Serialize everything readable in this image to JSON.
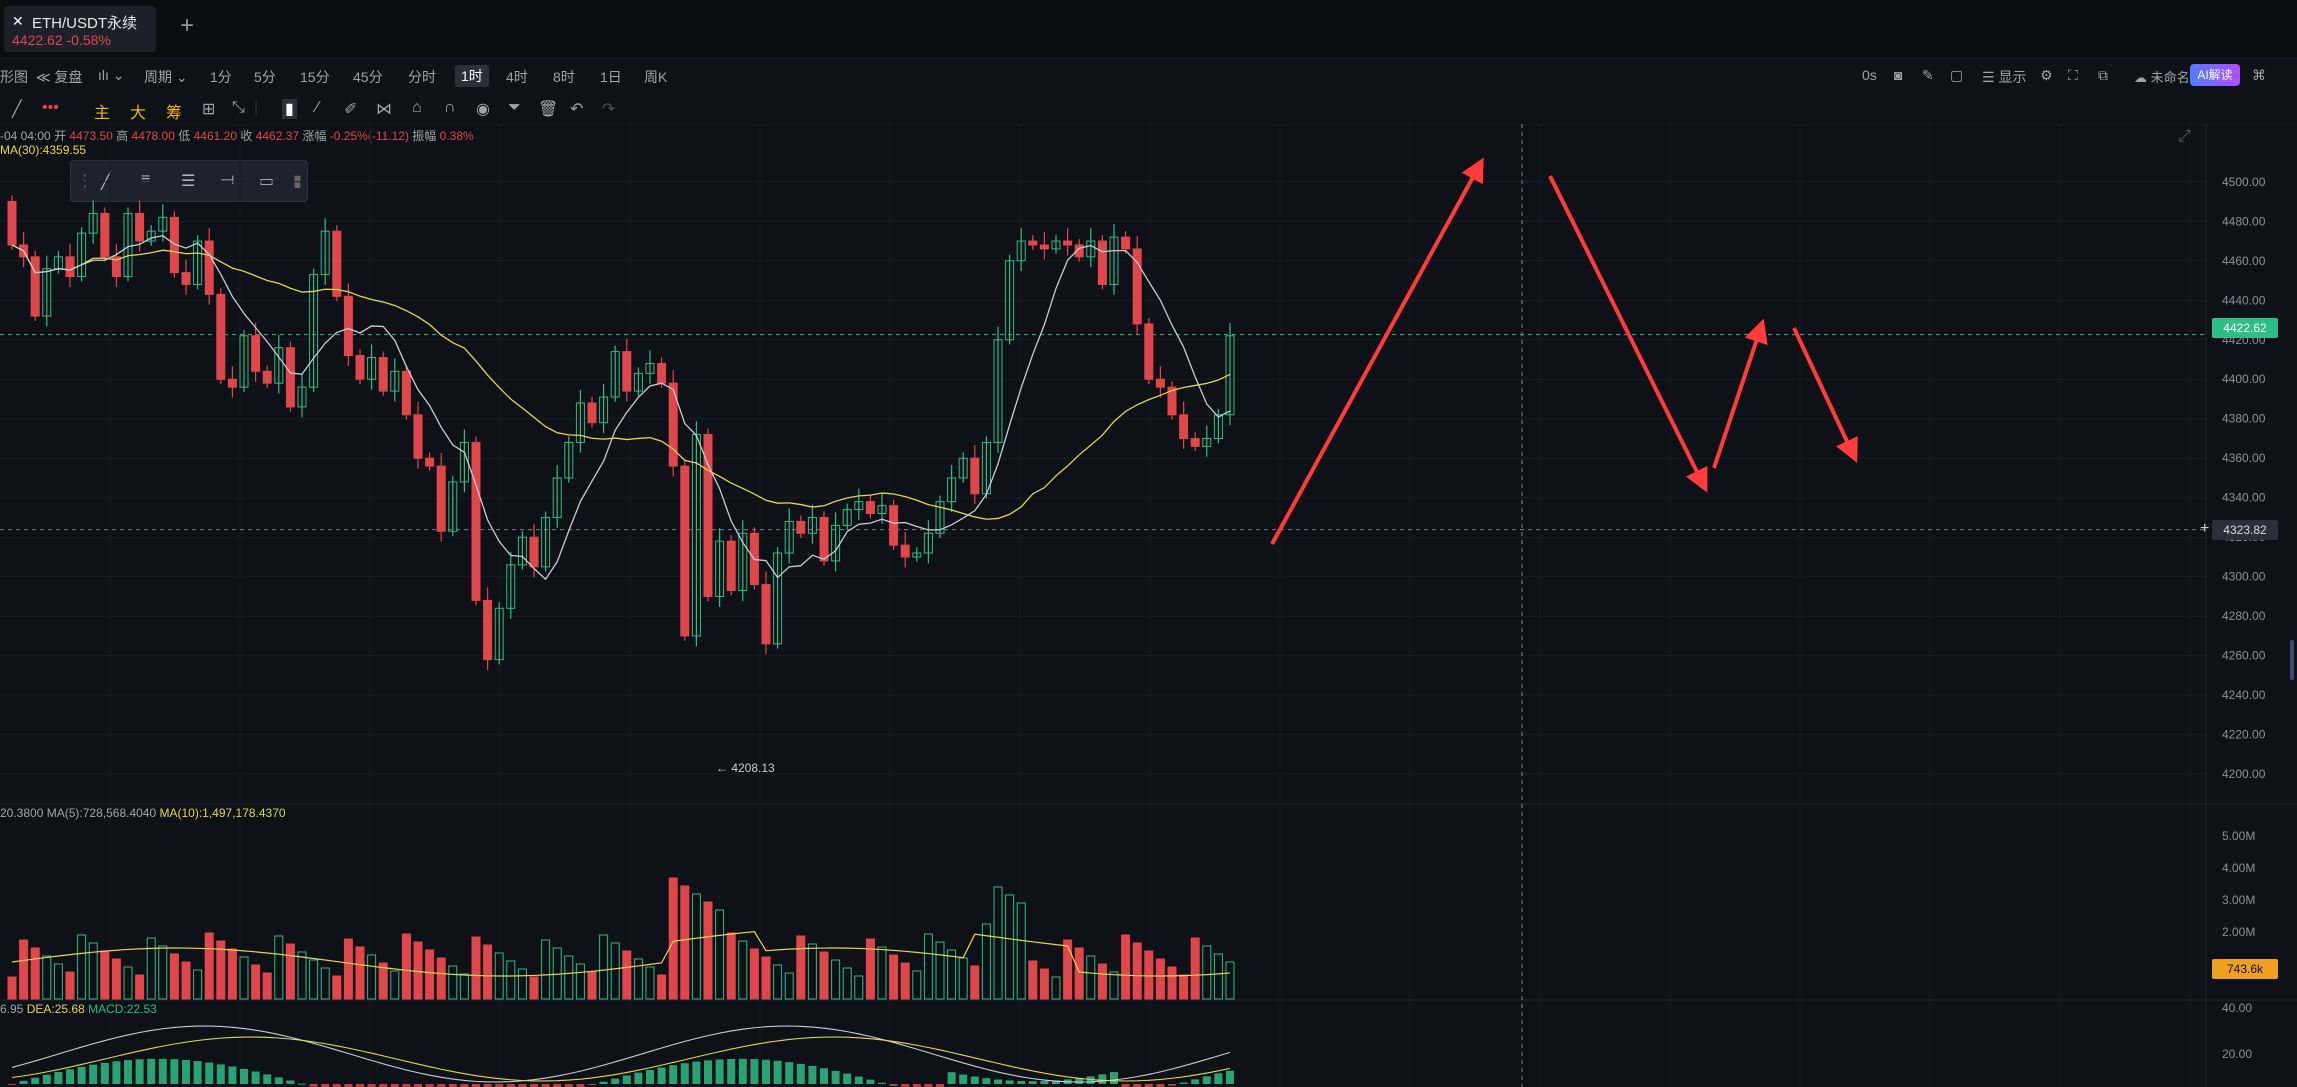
{
  "tab": {
    "title": "ETH/USDT永续",
    "price_change": "4422.62 -0.58%",
    "add": "+"
  },
  "toolbar": {
    "items": [
      "形图",
      "复盘",
      "周期",
      "1分",
      "5分",
      "15分",
      "45分",
      "分时",
      "1时",
      "4时",
      "8时",
      "1日",
      "周K"
    ],
    "active": "1时",
    "right": {
      "seconds": "0s",
      "display": "显示",
      "unnamed": "未命名",
      "ai": "AI解读"
    }
  },
  "toolbar2": {
    "indicators": [
      "主",
      "大",
      "筹"
    ]
  },
  "ohlc": {
    "time": "-04 04:00",
    "open_label": "开",
    "open": "4473.50",
    "high_label": "高",
    "high": "4478.00",
    "low_label": "低",
    "low": "4461.20",
    "close_label": "收",
    "close": "4462.37",
    "change_label": "涨幅",
    "change": "-0.25%(-11.12)",
    "amp_label": "振幅",
    "amp": "0.38%"
  },
  "ma_legend": "MA(30):4359.55",
  "volume_legend": {
    "vol": "20.3800",
    "ma5": "MA(5):728,568.4040",
    "ma10": "MA(10):1,497,178.4370"
  },
  "macd_legend": {
    "dif": "6.95",
    "dea": "DEA:25.68",
    "macd": "MACD:22.53"
  },
  "price_tags": {
    "current": "4422.62",
    "cursor": "4323.82",
    "volume": "743.6k",
    "low_marker": "← 4208.13"
  },
  "colors": {
    "up": "#2ebd85",
    "down": "#e0474b",
    "ma_yellow": "#e8d44d",
    "ma_white": "#c8ccd6",
    "arrow": "#ff3b3b",
    "current_price": "#2ebd85",
    "volume_tag": "#f0a020"
  },
  "chart_data": {
    "type": "candlestick",
    "price_axis": [
      "4500.00",
      "4480.00",
      "4460.00",
      "4440.00",
      "4420.00",
      "4400.00",
      "4380.00",
      "4360.00",
      "4340.00",
      "4320.00",
      "4300.00",
      "4280.00",
      "4260.00",
      "4240.00",
      "4220.00",
      "4200.00"
    ],
    "volume_axis": [
      "5.00M",
      "4.00M",
      "3.00M",
      "2.00M",
      "1.00M"
    ],
    "macd_axis": [
      "40.00",
      "20.00"
    ],
    "ylim": [
      4194,
      4508
    ],
    "candles": [
      [
        4490,
        4468
      ],
      [
        4468,
        4462
      ],
      [
        4462,
        4432
      ],
      [
        4432,
        4456
      ],
      [
        4456,
        4462
      ],
      [
        4462,
        4452
      ],
      [
        4452,
        4474
      ],
      [
        4474,
        4484
      ],
      [
        4484,
        4462
      ],
      [
        4462,
        4452
      ],
      [
        4452,
        4484
      ],
      [
        4484,
        4470
      ],
      [
        4470,
        4475
      ],
      [
        4475,
        4482
      ],
      [
        4482,
        4454
      ],
      [
        4454,
        4448
      ],
      [
        4448,
        4470
      ],
      [
        4470,
        4443
      ],
      [
        4443,
        4400
      ],
      [
        4400,
        4396
      ],
      [
        4396,
        4422
      ],
      [
        4422,
        4404
      ],
      [
        4404,
        4398
      ],
      [
        4398,
        4416
      ],
      [
        4416,
        4386
      ],
      [
        4386,
        4396
      ],
      [
        4396,
        4453
      ],
      [
        4453,
        4475
      ],
      [
        4475,
        4442
      ],
      [
        4442,
        4412
      ],
      [
        4412,
        4400
      ],
      [
        4400,
        4411
      ],
      [
        4411,
        4394
      ],
      [
        4394,
        4404
      ],
      [
        4404,
        4382
      ],
      [
        4382,
        4360
      ],
      [
        4360,
        4356
      ],
      [
        4356,
        4323
      ],
      [
        4323,
        4348
      ],
      [
        4348,
        4368
      ],
      [
        4368,
        4288
      ],
      [
        4288,
        4258
      ],
      [
        4258,
        4284
      ],
      [
        4284,
        4306
      ],
      [
        4306,
        4320
      ],
      [
        4320,
        4305
      ],
      [
        4305,
        4330
      ],
      [
        4330,
        4350
      ],
      [
        4350,
        4368
      ],
      [
        4368,
        4388
      ],
      [
        4388,
        4378
      ],
      [
        4378,
        4391
      ],
      [
        4391,
        4414
      ],
      [
        4414,
        4394
      ],
      [
        4394,
        4403
      ],
      [
        4403,
        4408
      ],
      [
        4408,
        4398
      ],
      [
        4398,
        4356
      ],
      [
        4356,
        4270
      ],
      [
        4270,
        4372
      ],
      [
        4372,
        4290
      ],
      [
        4290,
        4318
      ],
      [
        4318,
        4293
      ],
      [
        4293,
        4322
      ],
      [
        4322,
        4296
      ],
      [
        4296,
        4266
      ],
      [
        4266,
        4312
      ],
      [
        4312,
        4328
      ],
      [
        4328,
        4322
      ],
      [
        4322,
        4330
      ],
      [
        4330,
        4308
      ],
      [
        4308,
        4326
      ],
      [
        4326,
        4334
      ],
      [
        4334,
        4338
      ],
      [
        4338,
        4332
      ],
      [
        4332,
        4336
      ],
      [
        4336,
        4316
      ],
      [
        4316,
        4310
      ],
      [
        4310,
        4312
      ],
      [
        4312,
        4322
      ],
      [
        4322,
        4338
      ],
      [
        4338,
        4350
      ],
      [
        4350,
        4360
      ],
      [
        4360,
        4342
      ],
      [
        4342,
        4368
      ],
      [
        4368,
        4420
      ],
      [
        4420,
        4460
      ],
      [
        4460,
        4470
      ],
      [
        4470,
        4468
      ],
      [
        4468,
        4466
      ],
      [
        4466,
        4470
      ],
      [
        4470,
        4468
      ],
      [
        4468,
        4462
      ],
      [
        4462,
        4470
      ],
      [
        4470,
        4448
      ],
      [
        4448,
        4472
      ],
      [
        4472,
        4466
      ],
      [
        4466,
        4428
      ],
      [
        4428,
        4400
      ],
      [
        4400,
        4396
      ],
      [
        4396,
        4382
      ],
      [
        4382,
        4370
      ],
      [
        4370,
        4366
      ],
      [
        4366,
        4370
      ],
      [
        4370,
        4382
      ],
      [
        4382,
        4422
      ]
    ]
  }
}
